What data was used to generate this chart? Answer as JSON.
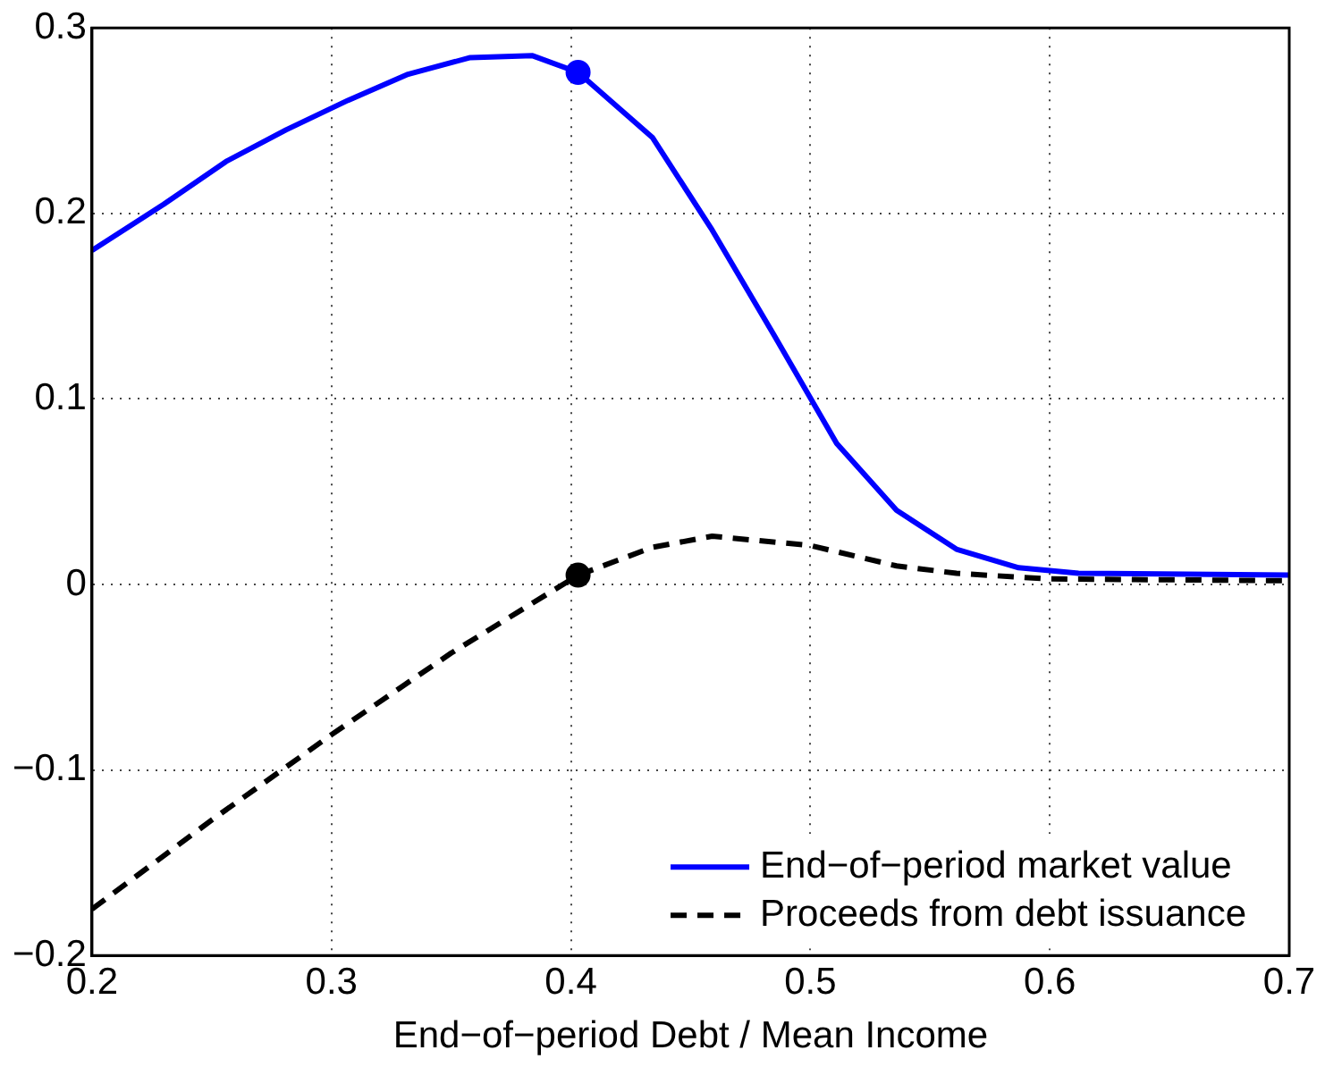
{
  "chart_data": {
    "type": "line",
    "xlabel": "End−of−period Debt / Mean Income",
    "xlim": [
      0.2,
      0.7
    ],
    "xticks": [
      0.2,
      0.3,
      0.4,
      0.5,
      0.6,
      0.7
    ],
    "ylim": [
      -0.2,
      0.3
    ],
    "yticks": [
      -0.2,
      -0.1,
      0,
      0.1,
      0.2,
      0.3
    ],
    "grid": true,
    "legend": "bottom right",
    "marker": "none",
    "series": [
      {
        "name": "End−of−period market value",
        "color": "#0000ff",
        "line_style": "solid",
        "x": [
          0.2,
          0.23,
          0.256,
          0.281,
          0.307,
          0.332,
          0.358,
          0.384,
          0.403,
          0.434,
          0.459,
          0.485,
          0.511,
          0.536,
          0.561,
          0.587,
          0.612,
          0.7
        ],
        "values": [
          0.18,
          0.205,
          0.228,
          0.245,
          0.261,
          0.275,
          0.284,
          0.285,
          0.276,
          0.241,
          0.191,
          0.134,
          0.076,
          0.04,
          0.019,
          0.009,
          0.006,
          0.005
        ]
      },
      {
        "name": "Proceeds from debt issuance",
        "color": "#000000",
        "line_style": "dashed",
        "x": [
          0.2,
          0.25,
          0.3,
          0.35,
          0.403,
          0.434,
          0.459,
          0.5,
          0.536,
          0.561,
          0.599,
          0.7
        ],
        "values": [
          -0.175,
          -0.127,
          -0.081,
          -0.037,
          0.005,
          0.02,
          0.026,
          0.021,
          0.01,
          0.006,
          0.003,
          0.002
        ]
      },
      {
        "type": "scatter",
        "color": "#0000ff",
        "marker": "circle",
        "x": [
          0.403
        ],
        "values": [
          0.276
        ]
      },
      {
        "type": "scatter",
        "color": "#000000",
        "marker": "circle",
        "x": [
          0.403
        ],
        "values": [
          0.005
        ]
      }
    ]
  }
}
